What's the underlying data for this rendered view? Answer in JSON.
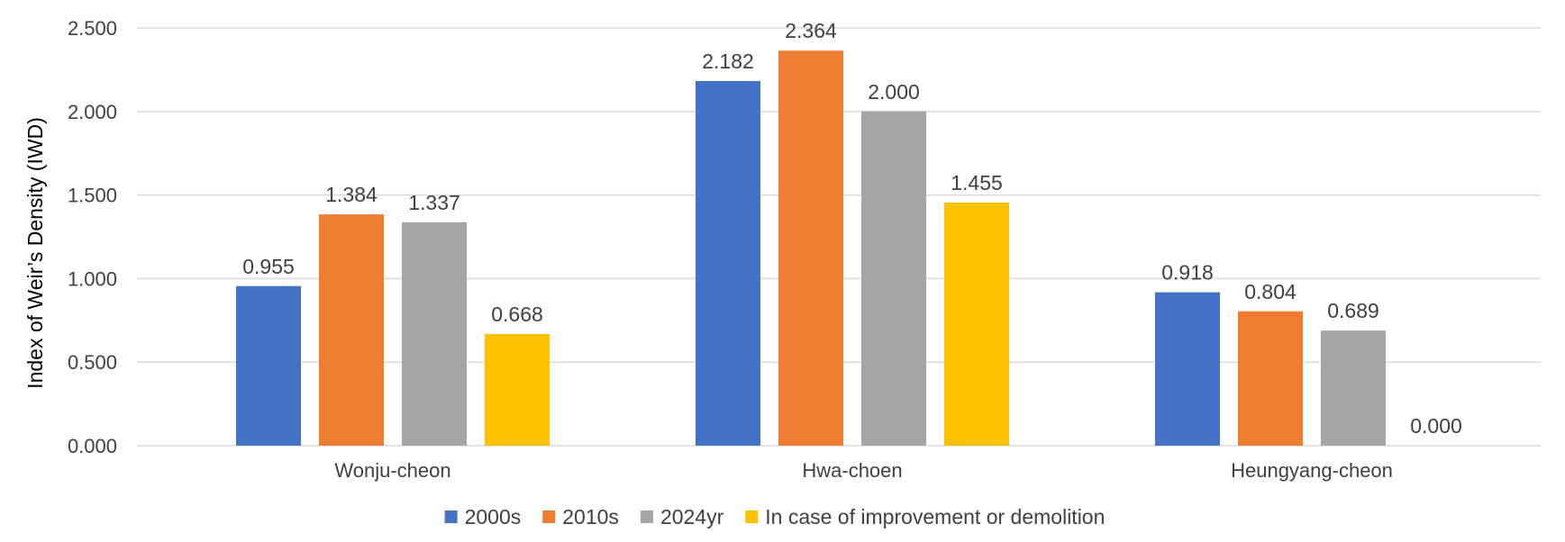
{
  "chart_data": {
    "type": "bar",
    "title": "",
    "xlabel": "",
    "ylabel": "Index of Weir’s Density (IWD)",
    "ylim": [
      0,
      2.5
    ],
    "y_ticks": [
      "0.000",
      "0.500",
      "1.000",
      "1.500",
      "2.000",
      "2.500"
    ],
    "y_tick_values": [
      0,
      0.5,
      1.0,
      1.5,
      2.0,
      2.5
    ],
    "grid": true,
    "legend_position": "bottom",
    "categories": [
      "Wonju-cheon",
      "Hwa-choen",
      "Heungyang-cheon"
    ],
    "series": [
      {
        "name": "2000s",
        "color": "#4472C4",
        "values": [
          0.955,
          2.182,
          0.918
        ],
        "labels": [
          "0.955",
          "2.182",
          "0.918"
        ]
      },
      {
        "name": "2010s",
        "color": "#ED7D31",
        "values": [
          1.384,
          2.364,
          0.804
        ],
        "labels": [
          "1.384",
          "2.364",
          "0.804"
        ]
      },
      {
        "name": "2024yr",
        "color": "#A5A5A5",
        "values": [
          1.337,
          2.0,
          0.689
        ],
        "labels": [
          "1.337",
          "2.000",
          "0.689"
        ]
      },
      {
        "name": "In case of improvement or demolition",
        "color": "#FFC000",
        "values": [
          0.668,
          1.455,
          0.0
        ],
        "labels": [
          "0.668",
          "1.455",
          "0.000"
        ]
      }
    ]
  }
}
